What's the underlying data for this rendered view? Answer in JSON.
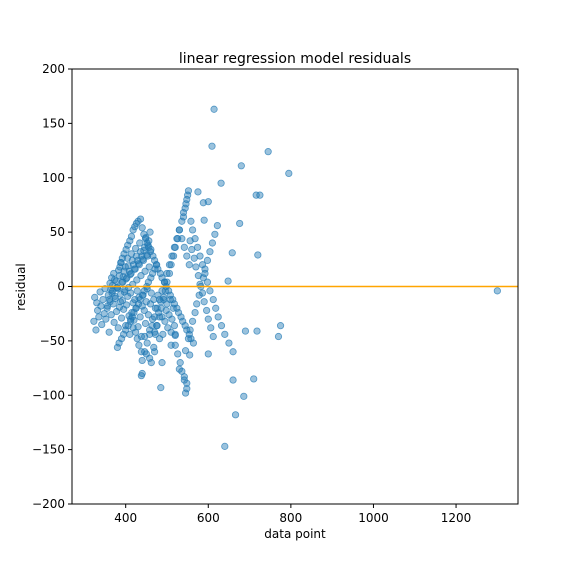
{
  "chart_data": {
    "type": "scatter",
    "title": "linear regression model residuals",
    "xlabel": "data point",
    "ylabel": "residual",
    "xlim": [
      270,
      1350
    ],
    "ylim": [
      -200,
      200
    ],
    "xticks": [
      400,
      600,
      800,
      1000,
      1200
    ],
    "yticks": [
      -200,
      -150,
      -100,
      -50,
      0,
      50,
      100,
      150,
      200
    ],
    "xtick_labels": [
      "400",
      "600",
      "800",
      "1000",
      "1200"
    ],
    "ytick_labels": [
      "−200",
      "−150",
      "−100",
      "−50",
      "0",
      "50",
      "100",
      "150",
      "200"
    ],
    "grid": false,
    "reference_line": {
      "y": 0,
      "color": "#FFA500"
    },
    "point_color": "#1f77b4",
    "point_alpha": 0.45,
    "points": {
      "x": [
        323,
        325,
        328,
        330,
        332,
        335,
        338,
        340,
        342,
        345,
        348,
        350,
        352,
        355,
        358,
        360,
        362,
        365,
        368,
        370,
        372,
        375,
        378,
        380,
        382,
        385,
        388,
        390,
        392,
        395,
        398,
        400,
        402,
        405,
        408,
        410,
        412,
        415,
        418,
        420,
        422,
        425,
        428,
        430,
        432,
        435,
        438,
        440,
        442,
        445,
        448,
        450,
        452,
        455,
        458,
        460,
        462,
        465,
        468,
        470,
        472,
        475,
        478,
        480,
        482,
        485,
        488,
        490,
        492,
        495,
        498,
        500,
        502,
        505,
        508,
        510,
        512,
        515,
        518,
        520,
        362,
        366,
        371,
        377,
        383,
        389,
        394,
        399,
        404,
        409,
        414,
        419,
        424,
        429,
        434,
        439,
        444,
        449,
        454,
        459,
        364,
        368,
        373,
        379,
        385,
        391,
        396,
        401,
        406,
        411,
        416,
        421,
        426,
        431,
        436,
        441,
        446,
        451,
        456,
        461,
        356,
        361,
        367,
        374,
        381,
        387,
        393,
        397,
        403,
        407,
        413,
        417,
        423,
        427,
        433,
        437,
        443,
        447,
        453,
        457,
        386,
        388,
        392,
        396,
        401,
        405,
        410,
        414,
        418,
        422,
        426,
        430,
        436,
        440,
        444,
        448,
        452,
        456,
        460,
        466,
        470,
        474,
        478,
        484,
        488,
        494,
        498,
        504,
        508,
        514,
        518,
        524,
        528,
        534,
        538,
        544,
        548,
        554,
        558,
        564,
        380,
        384,
        390,
        395,
        400,
        406,
        412,
        416,
        420,
        425,
        431,
        435,
        441,
        445,
        451,
        455,
        461,
        465,
        471,
        475,
        412,
        418,
        424,
        428,
        432,
        438,
        446,
        450,
        458,
        462,
        468,
        472,
        476,
        482,
        486,
        492,
        496,
        500,
        506,
        510,
        516,
        520,
        526,
        530,
        536,
        540,
        546,
        550,
        556,
        560,
        566,
        570,
        576,
        580,
        586,
        590,
        596,
        600,
        606,
        612,
        520,
        526,
        532,
        536,
        542,
        548,
        552,
        556,
        562,
        568,
        572,
        578,
        582,
        588,
        592,
        598,
        604,
        610,
        616,
        622,
        540,
        544,
        548,
        552,
        558,
        562,
        568,
        574,
        580,
        586,
        592,
        598,
        604,
        612,
        618,
        624,
        632,
        640,
        650,
        660,
        440,
        446,
        452,
        458,
        464,
        470,
        476,
        482,
        488,
        494,
        500,
        506,
        512,
        518,
        524,
        530,
        536,
        542,
        548,
        554,
        614,
        609,
        745,
        680,
        795,
        716,
        725,
        631,
        575,
        588,
        600,
        590,
        720,
        676,
        658,
        648,
        666,
        686,
        710,
        775,
        770,
        718,
        690,
        660,
        600,
        640,
        555,
        545,
        548,
        542,
        530,
        545,
        520,
        510,
        485,
        488,
        470,
        440,
        438,
        1300
      ],
      "y": [
        -32,
        -10,
        -40,
        -15,
        -22,
        -28,
        -5,
        -18,
        -35,
        -12,
        -25,
        -2,
        -30,
        -20,
        -8,
        -42,
        -14,
        -26,
        -4,
        -16,
        -33,
        -11,
        -23,
        -1,
        -38,
        -19,
        -7,
        -29,
        -13,
        -21,
        -3,
        -36,
        -17,
        -9,
        -27,
        -44,
        -6,
        -24,
        -15,
        -31,
        -12,
        -20,
        -4,
        -37,
        -10,
        -28,
        -46,
        -18,
        -8,
        -22,
        -34,
        -14,
        -2,
        -26,
        -40,
        -16,
        -6,
        -30,
        -12,
        -42,
        -20,
        -36,
        -8,
        -24,
        -48,
        -14,
        -28,
        -44,
        -10,
        -32,
        -22,
        -16,
        -38,
        -26,
        -12,
        -42,
        -30,
        -20,
        -36,
        -44,
        3,
        8,
        12,
        5,
        15,
        22,
        9,
        18,
        26,
        14,
        30,
        20,
        35,
        24,
        40,
        28,
        33,
        45,
        38,
        50,
        -3,
        1,
        6,
        -1,
        10,
        4,
        14,
        7,
        19,
        11,
        24,
        16,
        28,
        21,
        32,
        25,
        36,
        29,
        42,
        34,
        -18,
        -12,
        -6,
        -9,
        -2,
        -14,
        4,
        -5,
        8,
        -1,
        12,
        2,
        16,
        6,
        20,
        10,
        24,
        14,
        28,
        18,
        18,
        22,
        26,
        30,
        34,
        38,
        42,
        46,
        52,
        55,
        58,
        60,
        62,
        54,
        48,
        44,
        40,
        36,
        32,
        28,
        24,
        20,
        16,
        12,
        8,
        4,
        0,
        -4,
        -8,
        -12,
        -16,
        -20,
        -24,
        -28,
        -32,
        -36,
        -40,
        -44,
        -48,
        -52,
        -56,
        -52,
        -48,
        -44,
        -40,
        -36,
        -32,
        -28,
        -24,
        -20,
        -16,
        -12,
        -8,
        -4,
        0,
        4,
        8,
        12,
        16,
        20,
        -30,
        -38,
        -42,
        -48,
        -54,
        -60,
        -46,
        -62,
        -66,
        -70,
        -56,
        -44,
        -36,
        -28,
        -20,
        -12,
        -4,
        4,
        12,
        20,
        28,
        36,
        44,
        52,
        60,
        68,
        76,
        84,
        42,
        34,
        26,
        18,
        10,
        2,
        -6,
        -14,
        -22,
        -30,
        -38,
        -46,
        -54,
        -62,
        -70,
        -78,
        -86,
        -94,
        -48,
        -40,
        -32,
        -24,
        -16,
        -8,
        0,
        8,
        16,
        24,
        32,
        40,
        48,
        56,
        64,
        72,
        80,
        88,
        60,
        52,
        44,
        36,
        28,
        20,
        12,
        4,
        -4,
        -12,
        -20,
        -28,
        -36,
        -44,
        -52,
        -60,
        -68,
        -60,
        -52,
        -44,
        -36,
        -28,
        -20,
        -12,
        -4,
        4,
        12,
        20,
        28,
        36,
        44,
        52,
        44,
        36,
        28,
        20,
        163,
        129,
        124,
        111,
        104,
        84,
        84,
        95,
        87,
        77,
        78,
        61,
        29,
        58,
        31,
        5,
        -118,
        -101,
        -85,
        -36,
        -46,
        -41,
        -41,
        -86,
        -62,
        -147,
        -63,
        -98,
        -89,
        -83,
        -76,
        -59,
        -45,
        -54,
        -93,
        -70,
        -60,
        -80,
        -82,
        -4
      ]
    }
  }
}
